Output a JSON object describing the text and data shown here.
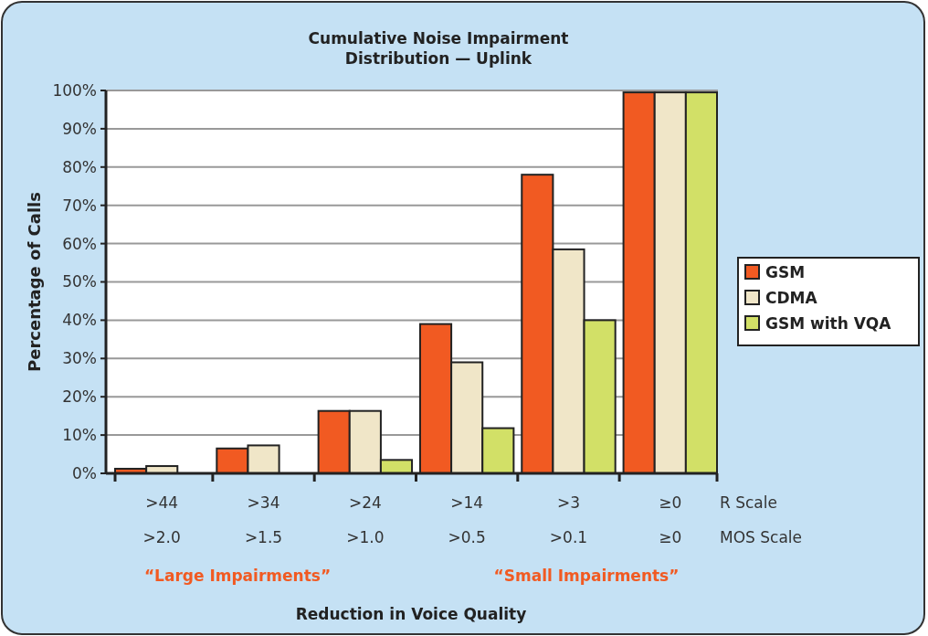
{
  "chart_data": {
    "type": "bar",
    "title": "Cumulative Noise Impairment\nDistribution — Uplink",
    "xlabel": "Reduction in Voice Quality",
    "ylabel": "Percentage of Calls",
    "categories": [
      ">44\n>2.0",
      ">34\n>1.5",
      ">24\n>1.0",
      ">14\n>0.5",
      ">3\n>0.1",
      "≥0\n≥0"
    ],
    "series": [
      {
        "name": "GSM",
        "color": "#f15a22",
        "values": [
          1.2,
          6.5,
          16.3,
          39,
          78,
          99.5
        ]
      },
      {
        "name": "CDMA",
        "color": "#f0e6c8",
        "values": [
          1.9,
          7.3,
          16.3,
          29,
          58.5,
          99.5
        ]
      },
      {
        "name": "GSM with VQA",
        "color": "#d2e067",
        "values": [
          0,
          0,
          3.5,
          11.8,
          40,
          99.5
        ]
      }
    ],
    "ylim": [
      0,
      100
    ],
    "yticks": [
      {
        "value": 0,
        "label": "0%"
      },
      {
        "value": 10,
        "label": "10%"
      },
      {
        "value": 20,
        "label": "20%"
      },
      {
        "value": 30,
        "label": "30%"
      },
      {
        "value": 40,
        "label": "40%"
      },
      {
        "value": 50,
        "label": "50%"
      },
      {
        "value": 60,
        "label": "60%"
      },
      {
        "value": 70,
        "label": "70%"
      },
      {
        "value": 80,
        "label": "80%"
      },
      {
        "value": 90,
        "label": "90%"
      },
      {
        "value": 100,
        "label": "100%"
      }
    ],
    "grid": "y",
    "legend": "right",
    "annotations": [
      "R Scale",
      "MOS Scale",
      "“Large Impairments”",
      "“Small Impairments”"
    ]
  }
}
